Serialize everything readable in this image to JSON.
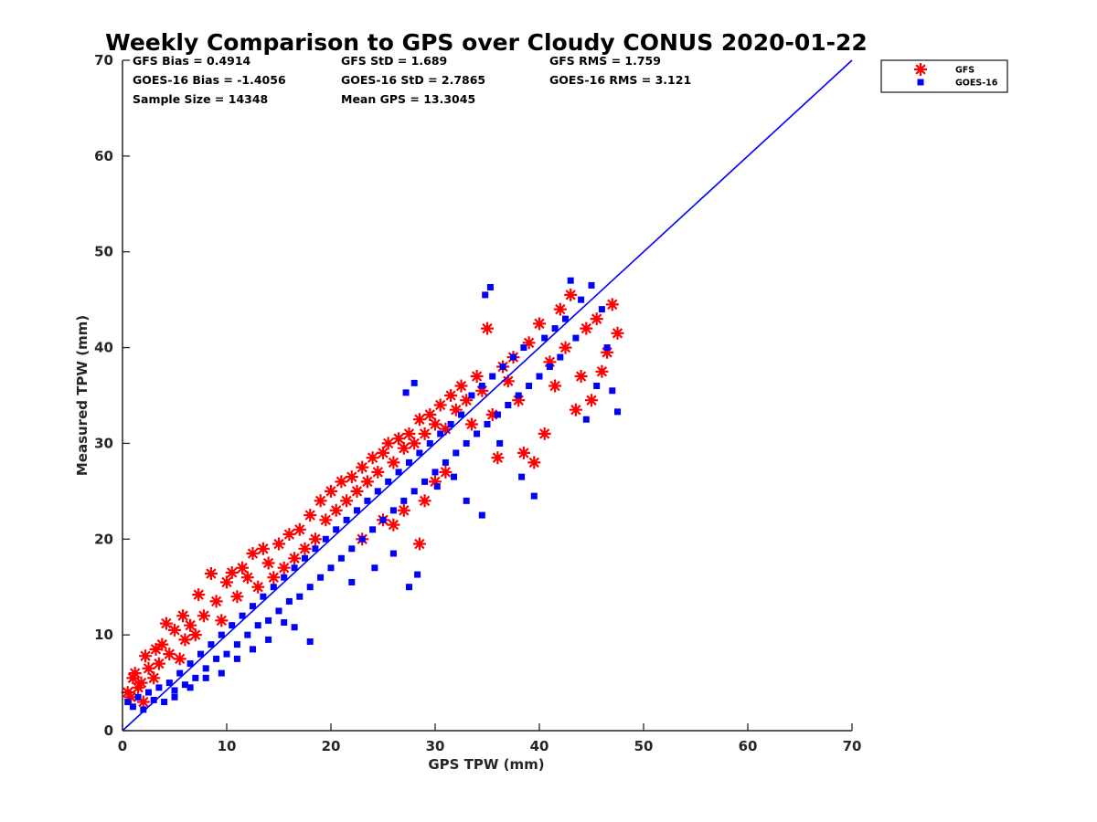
{
  "chart_data": {
    "type": "scatter",
    "title": "Weekly Comparison to GPS over Cloudy CONUS 2020-01-22",
    "xlabel": "GPS TPW (mm)",
    "ylabel": "Measured TPW (mm)",
    "xlim": [
      0,
      70
    ],
    "ylim": [
      0,
      70
    ],
    "x_ticks": [
      "0",
      "10",
      "20",
      "30",
      "40",
      "50",
      "60",
      "70"
    ],
    "y_ticks": [
      "0",
      "10",
      "20",
      "30",
      "40",
      "50",
      "60",
      "70"
    ],
    "grid": false,
    "legend_position": "top-right, outside plot",
    "one_to_one_line": {
      "from": [
        0,
        0
      ],
      "to": [
        70,
        70
      ],
      "color": "#0000ff"
    },
    "stats": [
      {
        "text": "GFS Bias = 0.4914"
      },
      {
        "text": "GFS StD = 1.689"
      },
      {
        "text": "GFS RMS = 1.759"
      },
      {
        "text": "GOES-16 Bias = -1.4056"
      },
      {
        "text": "GOES-16 StD = 2.7865"
      },
      {
        "text": "GOES-16 RMS = 3.121"
      },
      {
        "text": "Sample Size = 14348"
      },
      {
        "text": "Mean GPS = 13.3045"
      }
    ],
    "series": [
      {
        "name": "GFS",
        "marker": "asterisk",
        "color": "#ff0000",
        "points": [
          [
            0.5,
            4.0
          ],
          [
            0.8,
            3.5
          ],
          [
            1.0,
            5.5
          ],
          [
            1.2,
            6.0
          ],
          [
            1.5,
            4.5
          ],
          [
            1.8,
            5.0
          ],
          [
            2.0,
            3.0
          ],
          [
            2.2,
            7.8
          ],
          [
            2.5,
            6.5
          ],
          [
            3.0,
            5.5
          ],
          [
            3.2,
            8.5
          ],
          [
            3.5,
            7.0
          ],
          [
            3.8,
            9.0
          ],
          [
            4.2,
            11.2
          ],
          [
            4.5,
            8.0
          ],
          [
            5.0,
            10.5
          ],
          [
            5.5,
            7.5
          ],
          [
            5.8,
            12.0
          ],
          [
            6.0,
            9.5
          ],
          [
            6.5,
            11.0
          ],
          [
            7.0,
            10.0
          ],
          [
            7.3,
            14.2
          ],
          [
            7.8,
            12.0
          ],
          [
            8.5,
            16.4
          ],
          [
            9.0,
            13.5
          ],
          [
            9.5,
            11.5
          ],
          [
            10.0,
            15.5
          ],
          [
            10.5,
            16.5
          ],
          [
            11.0,
            14.0
          ],
          [
            11.5,
            17.0
          ],
          [
            12.0,
            16.0
          ],
          [
            12.5,
            18.5
          ],
          [
            13.0,
            15.0
          ],
          [
            13.5,
            19.0
          ],
          [
            14.0,
            17.5
          ],
          [
            14.5,
            16.0
          ],
          [
            15.0,
            19.5
          ],
          [
            15.5,
            17.0
          ],
          [
            16.0,
            20.5
          ],
          [
            16.5,
            18.0
          ],
          [
            17.0,
            21.0
          ],
          [
            17.5,
            19.0
          ],
          [
            18.0,
            22.5
          ],
          [
            18.5,
            20.0
          ],
          [
            19.0,
            24.0
          ],
          [
            19.5,
            22.0
          ],
          [
            20.0,
            25.0
          ],
          [
            20.5,
            23.0
          ],
          [
            21.0,
            26.0
          ],
          [
            21.5,
            24.0
          ],
          [
            22.0,
            26.5
          ],
          [
            22.5,
            25.0
          ],
          [
            23.0,
            27.5
          ],
          [
            23.5,
            26.0
          ],
          [
            24.0,
            28.5
          ],
          [
            24.5,
            27.0
          ],
          [
            25.0,
            29.0
          ],
          [
            25.5,
            30.0
          ],
          [
            26.0,
            28.0
          ],
          [
            26.5,
            30.5
          ],
          [
            27.0,
            29.5
          ],
          [
            27.5,
            31.0
          ],
          [
            28.0,
            30.0
          ],
          [
            28.5,
            32.5
          ],
          [
            29.0,
            31.0
          ],
          [
            29.5,
            33.0
          ],
          [
            30.0,
            32.0
          ],
          [
            30.5,
            34.0
          ],
          [
            31.0,
            31.5
          ],
          [
            31.5,
            35.0
          ],
          [
            32.0,
            33.5
          ],
          [
            32.5,
            36.0
          ],
          [
            33.0,
            34.5
          ],
          [
            33.5,
            32.0
          ],
          [
            34.0,
            37.0
          ],
          [
            34.5,
            35.5
          ],
          [
            35.0,
            42.0
          ],
          [
            35.5,
            33.0
          ],
          [
            36.0,
            28.5
          ],
          [
            36.5,
            38.0
          ],
          [
            37.0,
            36.5
          ],
          [
            37.5,
            39.0
          ],
          [
            38.0,
            34.5
          ],
          [
            38.5,
            29.0
          ],
          [
            39.0,
            40.5
          ],
          [
            39.5,
            28.0
          ],
          [
            40.0,
            42.5
          ],
          [
            40.5,
            31.0
          ],
          [
            41.0,
            38.5
          ],
          [
            41.5,
            36.0
          ],
          [
            42.0,
            44.0
          ],
          [
            42.5,
            40.0
          ],
          [
            43.0,
            45.5
          ],
          [
            43.5,
            33.5
          ],
          [
            44.0,
            37.0
          ],
          [
            44.5,
            42.0
          ],
          [
            45.0,
            34.5
          ],
          [
            45.5,
            43.0
          ],
          [
            46.0,
            37.5
          ],
          [
            46.5,
            39.5
          ],
          [
            47.0,
            44.5
          ],
          [
            47.5,
            41.5
          ],
          [
            23.0,
            20.0
          ],
          [
            25.0,
            22.0
          ],
          [
            27.0,
            23.0
          ],
          [
            28.5,
            19.5
          ],
          [
            29.0,
            24.0
          ],
          [
            30.0,
            26.0
          ],
          [
            31.0,
            27.0
          ],
          [
            26.0,
            21.5
          ]
        ]
      },
      {
        "name": "GOES-16",
        "marker": "square",
        "color": "#0000ff",
        "points": [
          [
            0.5,
            3.0
          ],
          [
            1.0,
            2.5
          ],
          [
            1.5,
            3.5
          ],
          [
            2.0,
            2.2
          ],
          [
            2.5,
            4.0
          ],
          [
            3.0,
            3.2
          ],
          [
            3.5,
            4.5
          ],
          [
            4.0,
            3.0
          ],
          [
            4.5,
            5.0
          ],
          [
            5.0,
            4.2
          ],
          [
            5.5,
            6.0
          ],
          [
            6.0,
            4.8
          ],
          [
            6.5,
            7.0
          ],
          [
            7.0,
            5.5
          ],
          [
            7.5,
            8.0
          ],
          [
            8.0,
            6.5
          ],
          [
            8.5,
            9.0
          ],
          [
            9.0,
            7.5
          ],
          [
            9.5,
            10.0
          ],
          [
            10.0,
            8.0
          ],
          [
            10.5,
            11.0
          ],
          [
            11.0,
            9.0
          ],
          [
            11.5,
            12.0
          ],
          [
            12.0,
            10.0
          ],
          [
            12.5,
            13.0
          ],
          [
            13.0,
            11.0
          ],
          [
            13.5,
            14.0
          ],
          [
            14.0,
            11.5
          ],
          [
            14.5,
            15.0
          ],
          [
            15.0,
            12.5
          ],
          [
            15.5,
            16.0
          ],
          [
            16.0,
            13.5
          ],
          [
            16.5,
            17.0
          ],
          [
            17.0,
            14.0
          ],
          [
            17.5,
            18.0
          ],
          [
            18.0,
            15.0
          ],
          [
            18.5,
            19.0
          ],
          [
            19.0,
            16.0
          ],
          [
            19.5,
            20.0
          ],
          [
            20.0,
            17.0
          ],
          [
            20.5,
            21.0
          ],
          [
            21.0,
            18.0
          ],
          [
            21.5,
            22.0
          ],
          [
            22.0,
            19.0
          ],
          [
            22.5,
            23.0
          ],
          [
            23.0,
            20.0
          ],
          [
            23.5,
            24.0
          ],
          [
            24.0,
            21.0
          ],
          [
            24.5,
            25.0
          ],
          [
            25.0,
            22.0
          ],
          [
            25.5,
            26.0
          ],
          [
            26.0,
            23.0
          ],
          [
            26.5,
            27.0
          ],
          [
            27.0,
            24.0
          ],
          [
            27.5,
            28.0
          ],
          [
            28.0,
            25.0
          ],
          [
            28.5,
            29.0
          ],
          [
            29.0,
            26.0
          ],
          [
            29.5,
            30.0
          ],
          [
            30.0,
            27.0
          ],
          [
            30.5,
            31.0
          ],
          [
            31.0,
            28.0
          ],
          [
            31.5,
            32.0
          ],
          [
            32.0,
            29.0
          ],
          [
            32.5,
            33.0
          ],
          [
            33.0,
            30.0
          ],
          [
            33.5,
            35.0
          ],
          [
            34.0,
            31.0
          ],
          [
            34.5,
            36.0
          ],
          [
            35.0,
            32.0
          ],
          [
            35.5,
            37.0
          ],
          [
            36.0,
            33.0
          ],
          [
            36.5,
            38.0
          ],
          [
            37.0,
            34.0
          ],
          [
            37.5,
            39.0
          ],
          [
            38.0,
            35.0
          ],
          [
            38.5,
            40.0
          ],
          [
            39.0,
            36.0
          ],
          [
            39.5,
            24.5
          ],
          [
            40.0,
            37.0
          ],
          [
            40.5,
            41.0
          ],
          [
            41.0,
            38.0
          ],
          [
            41.5,
            42.0
          ],
          [
            42.0,
            39.0
          ],
          [
            42.5,
            43.0
          ],
          [
            43.0,
            47.0
          ],
          [
            43.5,
            41.0
          ],
          [
            44.0,
            45.0
          ],
          [
            44.5,
            32.5
          ],
          [
            45.0,
            46.5
          ],
          [
            45.5,
            36.0
          ],
          [
            46.0,
            44.0
          ],
          [
            46.5,
            40.0
          ],
          [
            47.0,
            35.5
          ],
          [
            47.5,
            33.3
          ],
          [
            35.3,
            46.3
          ],
          [
            34.8,
            45.5
          ],
          [
            28.0,
            36.3
          ],
          [
            27.2,
            35.3
          ],
          [
            28.3,
            16.3
          ],
          [
            30.2,
            25.5
          ],
          [
            31.8,
            26.5
          ],
          [
            33.0,
            24.0
          ],
          [
            34.5,
            22.5
          ],
          [
            36.2,
            30.0
          ],
          [
            38.3,
            26.5
          ],
          [
            26.0,
            18.5
          ],
          [
            27.5,
            15.0
          ],
          [
            24.2,
            17.0
          ],
          [
            22.0,
            15.5
          ],
          [
            18.0,
            9.3
          ],
          [
            16.5,
            10.8
          ],
          [
            15.5,
            11.3
          ],
          [
            14.0,
            9.5
          ],
          [
            12.5,
            8.5
          ],
          [
            11.0,
            7.5
          ],
          [
            9.5,
            6.0
          ],
          [
            8.0,
            5.5
          ],
          [
            6.5,
            4.5
          ],
          [
            5.0,
            3.5
          ]
        ]
      }
    ]
  }
}
